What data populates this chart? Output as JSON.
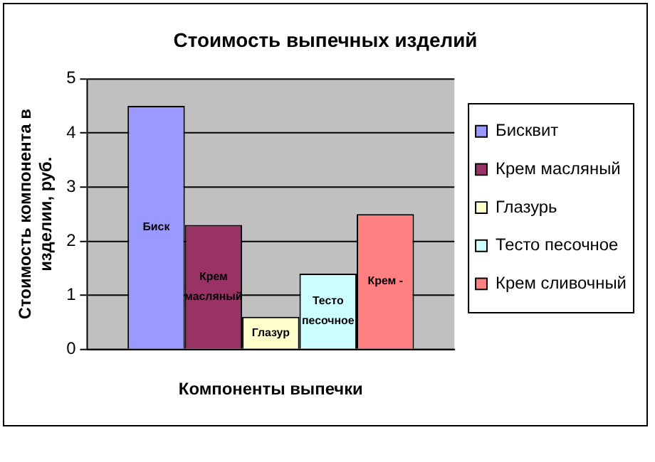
{
  "chart_data": {
    "type": "bar",
    "title": "Стоимость выпечных изделий",
    "xlabel": "Компоненты выпечки",
    "ylabel": "Стоимость компонента в изделии, руб.",
    "categories": [
      null
    ],
    "series": [
      {
        "name": "Бисквит",
        "color": "#9999ff",
        "values": [
          4.5
        ]
      },
      {
        "name": "Крем масляный",
        "color": "#993366",
        "values": [
          2.3
        ]
      },
      {
        "name": "Глазурь",
        "color": "#ffffcc",
        "values": [
          0.6
        ]
      },
      {
        "name": "Тесто песочное",
        "color": "#ccffff",
        "values": [
          1.4
        ]
      },
      {
        "name": "Крем сливочный",
        "color": "#ff8080",
        "values": [
          2.5
        ]
      }
    ],
    "ylim": [
      0,
      5
    ],
    "yticks": [
      0,
      1,
      2,
      3,
      4,
      5
    ],
    "grid": "y",
    "legend": "right",
    "annotations": [
      "Биск",
      "Крем масляный",
      "Глазур",
      "Тесто песочное",
      "Крем -"
    ]
  }
}
